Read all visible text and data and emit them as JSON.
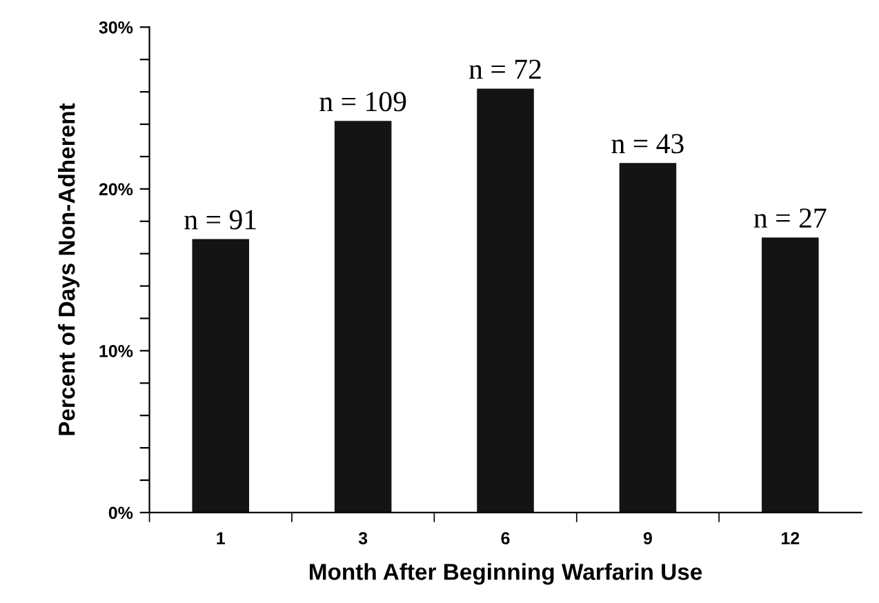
{
  "chart_data": {
    "type": "bar",
    "xlabel": "Month After Beginning Warfarin Use",
    "ylabel": "Percent of Days Non-Adherent",
    "categories": [
      "1",
      "3",
      "6",
      "9",
      "12"
    ],
    "values": [
      16.9,
      24.2,
      26.2,
      21.6,
      17.0
    ],
    "color": "#141414",
    "annotations": [
      {
        "text": "n = 91",
        "x": "1",
        "y": 16.9
      },
      {
        "text": "n = 109",
        "x": "3",
        "y": 24.2
      },
      {
        "text": "n = 72",
        "x": "6",
        "y": 26.2
      },
      {
        "text": "n = 43",
        "x": "9",
        "y": 21.6
      },
      {
        "text": "n = 27",
        "x": "12",
        "y": 17.0
      }
    ],
    "ylim": [
      0,
      30
    ],
    "yticks": [
      {
        "value": 0,
        "label": "0%"
      },
      {
        "value": 2,
        "label": null
      },
      {
        "value": 4,
        "label": null
      },
      {
        "value": 6,
        "label": null
      },
      {
        "value": 8,
        "label": null
      },
      {
        "value": 10,
        "label": "10%"
      },
      {
        "value": 12,
        "label": null
      },
      {
        "value": 14,
        "label": null
      },
      {
        "value": 16,
        "label": null
      },
      {
        "value": 18,
        "label": null
      },
      {
        "value": 20,
        "label": "20%"
      },
      {
        "value": 22,
        "label": null
      },
      {
        "value": 24,
        "label": null
      },
      {
        "value": 26,
        "label": null
      },
      {
        "value": 28,
        "label": null
      },
      {
        "value": 30,
        "label": "30%"
      }
    ],
    "grid": false,
    "legend": false
  }
}
